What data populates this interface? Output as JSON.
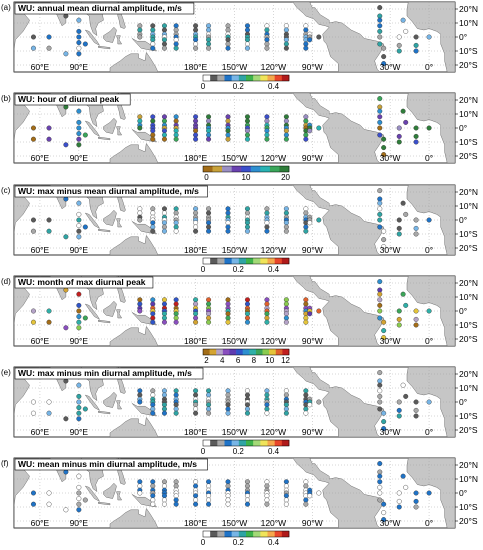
{
  "lon_labels": [
    "60°E",
    "90°E",
    "180°E",
    "150°W",
    "120°W",
    "90°W",
    "30°W",
    "0°"
  ],
  "lat_labels": [
    "20°N",
    "10°N",
    "0°",
    "10°S",
    "20°S"
  ],
  "colormaps": {
    "amplitude": [
      "#ffffff",
      "#5a5a5a",
      "#a8a8a8",
      "#1f73c7",
      "#77b5e6",
      "#2fa4a4",
      "#3db34a",
      "#a3d977",
      "#f0e45a",
      "#f5a84c",
      "#e8462a",
      "#b01a1a"
    ],
    "hour": [
      "#a36d18",
      "#c8a23a",
      "#9a8fc4",
      "#6a42b0",
      "#3b4fcb",
      "#2d8fd0",
      "#29b3b3",
      "#3aa65a",
      "#2f7d3a"
    ],
    "month": [
      "#a36d18",
      "#d4a431",
      "#b5a3c8",
      "#8a4fbf",
      "#5d3bb0",
      "#2f55c8",
      "#2d8fd0",
      "#2fb0a8",
      "#3ba659",
      "#8acb4f",
      "#e4c43a",
      "#e0612c",
      "#c21f1f"
    ]
  },
  "panels": [
    {
      "label": "(a)",
      "title": "WU: annual mean diurnal amplitude, m/s",
      "colorbar": "amplitude",
      "ticks": [
        "0",
        "0.2",
        "0.4"
      ]
    },
    {
      "label": "(b)",
      "title": "WU: hour of diurnal peak",
      "colorbar": "hour",
      "ticks": [
        "0",
        "10",
        "20"
      ]
    },
    {
      "label": "(c)",
      "title": "WU: max minus mean diurnal amplitude, m/s",
      "colorbar": "amplitude",
      "ticks": [
        "0",
        "0.2",
        "0.4"
      ]
    },
    {
      "label": "(d)",
      "title": "WU: month of max diurnal peak",
      "colorbar": "month",
      "ticks": [
        "2",
        "4",
        "6",
        "8",
        "10",
        "12"
      ]
    },
    {
      "label": "(e)",
      "title": "WU: max minus min diurnal amplitude, m/s",
      "colorbar": "amplitude",
      "ticks": [
        "0",
        "0.2",
        "0.4"
      ]
    },
    {
      "label": "(f)",
      "title": "WU: mean minus min diurnal amplitude, m/s",
      "colorbar": "amplitude",
      "ticks": [
        "0",
        "0.2",
        "0.4"
      ]
    }
  ]
}
